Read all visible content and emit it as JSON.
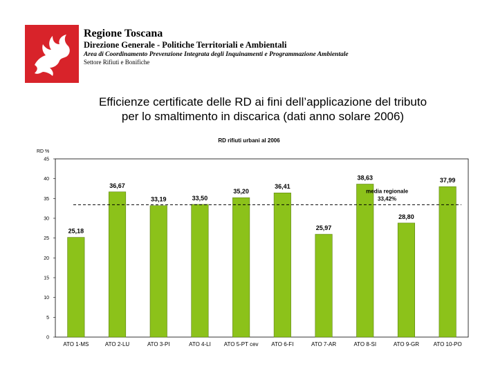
{
  "header": {
    "org_name": "Regione Toscana",
    "direzione": "Direzione Generale - Politiche Territoriali e Ambientali",
    "area": "Area di Coordinamento Prevenzione Integrata degli Inquinamenti e Programmazione Ambientale",
    "settore": "Settore Rifiuti e Bonifiche"
  },
  "slide": {
    "title_line1": "Efficienze certificate delle RD ai fini dell’applicazione del tributo",
    "title_line2": "per lo smaltimento in discarica (dati anno solare 2006)"
  },
  "colors": {
    "bar": "#8cc21a",
    "bar_stroke": "#5a7f0f",
    "logo_red": "#d8232a",
    "reference_line": "#000000"
  },
  "chart_data": {
    "type": "bar",
    "title": "RD rifiuti urbani al 2006",
    "ylabel": "RD %",
    "xlabel": "",
    "ylim": [
      0,
      45
    ],
    "yticks": [
      0,
      5,
      10,
      15,
      20,
      25,
      30,
      35,
      40,
      45
    ],
    "grid": false,
    "categories": [
      "ATO 1-MS",
      "ATO 2-LU",
      "ATO 3-PI",
      "ATO 4-LI",
      "ATO 5-PT cev",
      "ATO 6-FI",
      "ATO 7-AR",
      "ATO 8-SI",
      "ATO 9-GR",
      "ATO 10-PO"
    ],
    "values": [
      25.18,
      36.67,
      33.19,
      33.5,
      35.2,
      36.41,
      25.97,
      38.63,
      28.8,
      37.99
    ],
    "value_labels": [
      "25,18",
      "36,67",
      "33,19",
      "33,50",
      "35,20",
      "36,41",
      "25,97",
      "38,63",
      "28,80",
      "37,99"
    ],
    "reference_line": {
      "value": 33.42,
      "label": "media regionale",
      "value_label": "33,42%",
      "style": "dashed"
    }
  }
}
